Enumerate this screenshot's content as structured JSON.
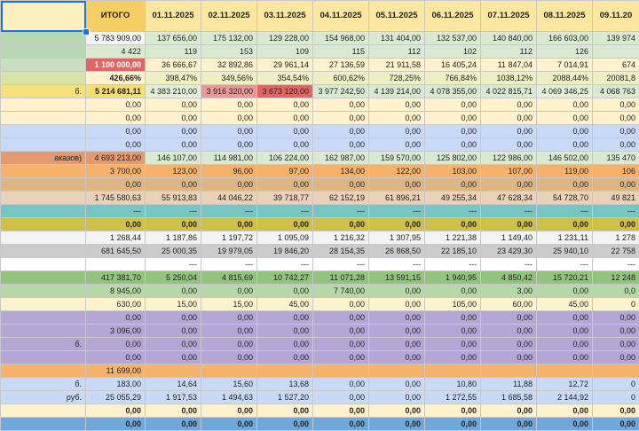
{
  "table": {
    "header": [
      null,
      "ИТОГО",
      "01.11.2025",
      "02.11.2025",
      "03.11.2025",
      "04.11.2025",
      "05.11.2025",
      "06.11.2025",
      "07.11.2025",
      "08.11.2025",
      "09.11.20"
    ],
    "rows": [
      {
        "label": null,
        "cells": [
          "5 783 909,00",
          "137 656,00",
          "175 132,00",
          "129 228,00",
          "154 968,00",
          "131 404,00",
          "132 537,00",
          "140 840,00",
          "166 603,00",
          "139 974"
        ]
      },
      {
        "label": null,
        "cells": [
          "4 422",
          "119",
          "153",
          "109",
          "115",
          "112",
          "102",
          "112",
          "126",
          null
        ]
      },
      {
        "label": null,
        "cells": [
          "1 100 000,00",
          "36 666,67",
          "32 892,86",
          "29 961,14",
          "27 136,59",
          "21 911,58",
          "16 405,24",
          "11 847,04",
          "7 014,91",
          "674"
        ]
      },
      {
        "label": null,
        "cells": [
          "426,66%",
          "398,47%",
          "349,56%",
          "354,54%",
          "600,62%",
          "728,25%",
          "766,84%",
          "1038,12%",
          "2088,44%",
          "20081,8"
        ]
      },
      {
        "label": "б.",
        "cells": [
          "5 214 681,11",
          "4 383 210,00",
          "3 916 320,00",
          "3 673 120,00",
          "3 977 242,50",
          "4 139 214,00",
          "4 078 355,00",
          "4 022 815,71",
          "4 069 346,25",
          "4 068 763"
        ]
      },
      {
        "label": null,
        "cells": [
          "0,00",
          "0,00",
          "0,00",
          "0,00",
          "0,00",
          "0,00",
          "0,00",
          "0,00",
          "0,00",
          "0,00"
        ]
      },
      {
        "label": null,
        "cells": [
          "0,00",
          "0,00",
          "0,00",
          "0,00",
          "0,00",
          "0,00",
          "0,00",
          "0,00",
          "0,00",
          "0,00"
        ]
      },
      {
        "label": null,
        "cells": [
          "0,00",
          "0,00",
          "0,00",
          "0,00",
          "0,00",
          "0,00",
          "0,00",
          "0,00",
          "0,00",
          "0,00"
        ]
      },
      {
        "label": null,
        "cells": [
          "0,00",
          "0,00",
          "0,00",
          "0,00",
          "0,00",
          "0,00",
          "0,00",
          "0,00",
          "0,00",
          "0,00"
        ]
      },
      {
        "label": "аказов)",
        "cells": [
          "4 693 213,00",
          "146 107,00",
          "114 981,00",
          "106 224,00",
          "162 987,00",
          "159 570,00",
          "125 802,00",
          "122 986,00",
          "146 502,00",
          "135 470"
        ]
      },
      {
        "label": null,
        "cells": [
          "3 700,00",
          "123,00",
          "96,00",
          "97,00",
          "134,00",
          "122,00",
          "103,00",
          "107,00",
          "119,00",
          "106"
        ]
      },
      {
        "label": null,
        "cells": [
          "0,00",
          "0,00",
          "0,00",
          "0,00",
          "0,00",
          "0,00",
          "0,00",
          "0,00",
          "0,00",
          "0,00"
        ]
      },
      {
        "label": null,
        "cells": [
          "1 745 580,63",
          "55 913,83",
          "44 046,22",
          "39 718,77",
          "62 152,19",
          "61 896,21",
          "49 255,34",
          "47 628,34",
          "54 728,70",
          "49 821"
        ]
      },
      {
        "label": null,
        "cells": [
          "---",
          "---",
          "---",
          "---",
          "---",
          "---",
          "---",
          "---",
          "---",
          "---"
        ]
      },
      {
        "label": null,
        "cells": [
          "0,00",
          "0,00",
          "0,00",
          "0,00",
          "0,00",
          "0,00",
          "0,00",
          "0,00",
          "0,00",
          "0,00"
        ]
      },
      {
        "label": null,
        "cells": [
          "1 268,44",
          "1 187,86",
          "1 197,72",
          "1 095,09",
          "1 216,32",
          "1 307,95",
          "1 221,38",
          "1 149,40",
          "1 231,11",
          "1 278"
        ]
      },
      {
        "label": null,
        "cells": [
          "681 645,50",
          "25 000,35",
          "19 979,05",
          "19 846,20",
          "28 154,35",
          "26 868,50",
          "22 185,10",
          "23 429,30",
          "25 940,10",
          "22 758"
        ]
      },
      {
        "label": null,
        "cells": [
          null,
          "---",
          "---",
          "---",
          "---",
          "---",
          "---",
          "---",
          "---",
          "---"
        ]
      },
      {
        "label": null,
        "cells": [
          "417 381,70",
          "5 250,04",
          "4 815,69",
          "10 742,27",
          "11 071,28",
          "13 591,15",
          "1 940,95",
          "4 850,42",
          "15 720,21",
          "12 248"
        ]
      },
      {
        "label": null,
        "cells": [
          "8 945,00",
          "0,00",
          "0,00",
          "0,00",
          "7 740,00",
          "0,00",
          "0,00",
          "3,00",
          "0,00",
          "0,0"
        ]
      },
      {
        "label": null,
        "cells": [
          "630,00",
          "15,00",
          "15,00",
          "45,00",
          "0,00",
          "0,00",
          "105,00",
          "60,00",
          "45,00",
          "0"
        ]
      },
      {
        "label": null,
        "cells": [
          "0,00",
          "0,00",
          "0,00",
          "0,00",
          "0,00",
          "0,00",
          "0,00",
          "0,00",
          "0,00",
          "0,00"
        ]
      },
      {
        "label": null,
        "cells": [
          "3 096,00",
          "0,00",
          "0,00",
          "0,00",
          "0,00",
          "0,00",
          "0,00",
          "0,00",
          "0,00",
          "0,00"
        ]
      },
      {
        "label": "б.",
        "cells": [
          "0,00",
          "0,00",
          "0,00",
          "0,00",
          "0,00",
          "0,00",
          "0,00",
          "0,00",
          "0,00",
          "0,00"
        ]
      },
      {
        "label": null,
        "cells": [
          "0,00",
          "0,00",
          "0,00",
          "0,00",
          "0,00",
          "0,00",
          "0,00",
          "0,00",
          "0,00",
          "0,00"
        ]
      },
      {
        "label": null,
        "cells": [
          "11 699,00",
          null,
          null,
          null,
          null,
          null,
          null,
          null,
          null,
          null
        ]
      },
      {
        "label": "б.",
        "cells": [
          "183,00",
          "14,64",
          "15,60",
          "13,68",
          "0,00",
          "0,00",
          "10,80",
          "11,88",
          "12,72",
          "0"
        ]
      },
      {
        "label": "руб.",
        "cells": [
          "25 055,29",
          "1 917,53",
          "1 494,63",
          "1 527,20",
          "0,00",
          "0,00",
          "1 272,55",
          "1 685,58",
          "2 144,92",
          "0"
        ]
      },
      {
        "label": null,
        "cells": [
          "0,00",
          "0,00",
          "0,00",
          "0,00",
          "0,00",
          "0,00",
          "0,00",
          "0,00",
          "0,00",
          "0,00"
        ]
      },
      {
        "label": null,
        "cells": [
          "0,00",
          "0,00",
          "0,00",
          "0,00",
          "0,00",
          "0,00",
          "0,00",
          "0,00",
          "0,00",
          "0,00"
        ]
      }
    ]
  }
}
